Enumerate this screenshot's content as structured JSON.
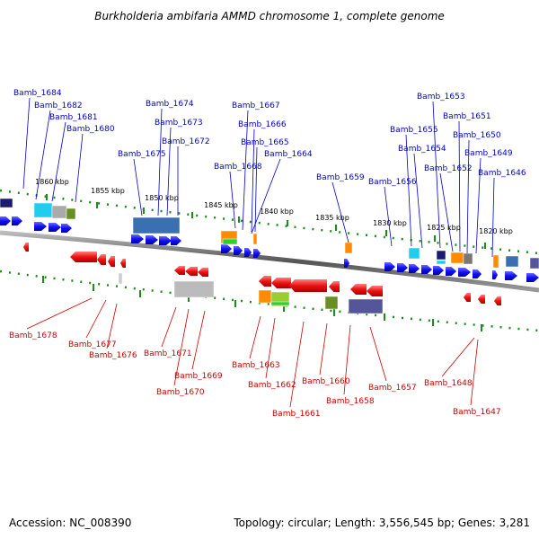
{
  "title": "Burkholderia ambifaria AMMD chromosome 1, complete genome",
  "footer": {
    "accession": "Accession: NC_008390",
    "topology": "Topology: circular; Length: 3,556,545 bp; Genes: 3,281"
  },
  "scale_labels": [
    "1860 kbp",
    "1855 kbp",
    "1850 kbp",
    "1845 kbp",
    "1840 kbp",
    "1835 kbp",
    "1830 kbp",
    "1825 kbp",
    "1820 kbp"
  ],
  "forward_genes": [
    "Bamb_1684",
    "Bamb_1682",
    "Bamb_1681",
    "Bamb_1680",
    "Bamb_1675",
    "Bamb_1674",
    "Bamb_1673",
    "Bamb_1672",
    "Bamb_1668",
    "Bamb_1667",
    "Bamb_1666",
    "Bamb_1665",
    "Bamb_1664",
    "Bamb_1659",
    "Bamb_1656",
    "Bamb_1655",
    "Bamb_1654",
    "Bamb_1653",
    "Bamb_1652",
    "Bamb_1651",
    "Bamb_1650",
    "Bamb_1649",
    "Bamb_1646"
  ],
  "reverse_genes": [
    "Bamb_1678",
    "Bamb_1677",
    "Bamb_1676",
    "Bamb_1671",
    "Bamb_1670",
    "Bamb_1669",
    "Bamb_1663",
    "Bamb_1662",
    "Bamb_1661",
    "Bamb_1660",
    "Bamb_1658",
    "Bamb_1657",
    "Bamb_1648",
    "Bamb_1647"
  ],
  "colors": {
    "forward_label": "#0000cc",
    "reverse_label": "#cc0000",
    "forward_gene": "#1a1aff",
    "reverse_gene": "#ff1a1a",
    "tick": "#1a8c1a"
  }
}
